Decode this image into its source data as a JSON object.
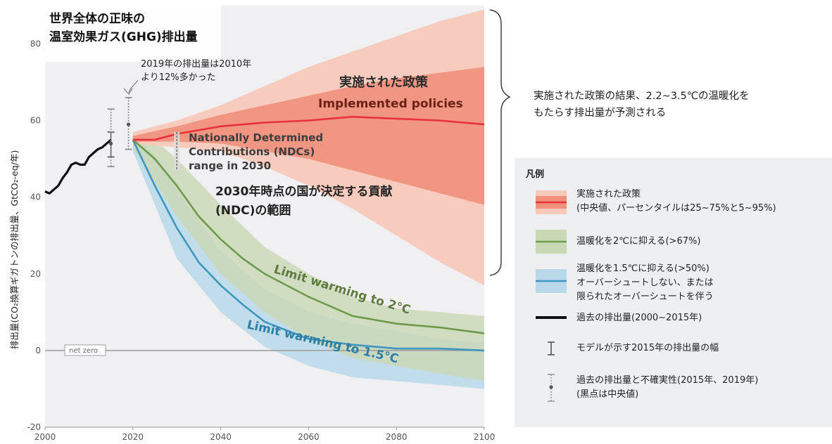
{
  "title": {
    "line1": "世界全体の正味の",
    "line2": "温室効果ガス(GHG)排出量"
  },
  "y_axis_label": "排出量(CO₂換算ギガトンの排出量、GtCO₂-eq/年)",
  "annotations": {
    "note_2019_line1": "2019年の排出量は2010年",
    "note_2019_line2": "より12%多かった",
    "implemented_jp": "実施された政策",
    "implemented_en": "Implemented policies",
    "ndc_en_line1": "Nationally Determined",
    "ndc_en_line2": "Contributions (NDCs)",
    "ndc_en_line3": "range in 2030",
    "ndc_jp_line1": "2030年時点の国が決定する貢献",
    "ndc_jp_line2": "(NDC)の範囲",
    "net_zero": "net zero",
    "limit_2c": "Limit warming to 2°C",
    "limit_15c": "Limit warming to 1.5°C",
    "brace_line1": "実施された政策の結果、2.2~3.5℃の温暖化を",
    "brace_line2": "もたらす排出量が予測される"
  },
  "legend": {
    "title": "凡例",
    "items": [
      {
        "line1": "実施された政策",
        "line2": "(中央値、パーセンタイルは25~75%と5~95%)"
      },
      {
        "line1": "温暖化を2℃に抑える(>67%)"
      },
      {
        "line1": "温暖化を1.5℃に抑える(>50%)",
        "line2": "オーバーシュートしない、または",
        "line3": "限られたオーバーシュートを伴う"
      },
      {
        "line1": "過去の排出量(2000~2015年)"
      },
      {
        "line1": "モデルが示す2015年の排出量の幅"
      },
      {
        "line1": "過去の排出量と不確実性(2015年、2019年)",
        "line2": "(黒点は中央値)"
      }
    ]
  },
  "colors": {
    "implemented": "#e8323c",
    "implemented_outer": "#f7c9bb",
    "implemented_inner": "#f0907b",
    "warming_2c": "#6f9a4c",
    "warming_2c_band": "#c9d8b4",
    "warming_15c": "#3f96bf",
    "warming_15c_band": "#b9d9ea",
    "historical": "#111111",
    "net_zero": "#a0a0a0"
  },
  "chart_data": {
    "type": "area",
    "xlim": [
      2000,
      2100
    ],
    "ylim": [
      -20,
      90
    ],
    "xticks": [
      2000,
      2020,
      2040,
      2060,
      2080,
      2100
    ],
    "yticks": [
      -20,
      0,
      20,
      40,
      60,
      80
    ],
    "grid": false,
    "legend_position": "right",
    "series": [
      {
        "name": "過去の排出量(2000~2015年)",
        "kind": "line",
        "x": [
          2000,
          2001,
          2002,
          2003,
          2004,
          2005,
          2006,
          2007,
          2008,
          2009,
          2010,
          2011,
          2012,
          2013,
          2014,
          2015
        ],
        "y": [
          41.5,
          41,
          42,
          43,
          45,
          46.5,
          48.5,
          49,
          48.5,
          48.5,
          50.5,
          51.5,
          52.5,
          53,
          54,
          55
        ]
      },
      {
        "name": "実施された政策",
        "kind": "line",
        "x": [
          2020,
          2025,
          2030,
          2040,
          2050,
          2060,
          2070,
          2080,
          2090,
          2100
        ],
        "y": [
          55,
          55,
          56.5,
          58.5,
          59.5,
          60,
          61,
          60.5,
          60,
          59
        ]
      },
      {
        "kind": "band",
        "percentile": "5-95",
        "x": [
          2020,
          2030,
          2040,
          2050,
          2060,
          2070,
          2080,
          2090,
          2100
        ],
        "upper": [
          57,
          60,
          64,
          69,
          74,
          78,
          82,
          86,
          89
        ],
        "lower": [
          54,
          53,
          52,
          48,
          43,
          37,
          30,
          23,
          17
        ]
      },
      {
        "kind": "band",
        "percentile": "25-75",
        "x": [
          2020,
          2030,
          2040,
          2050,
          2060,
          2070,
          2080,
          2090,
          2100
        ],
        "upper": [
          56,
          58.5,
          61.5,
          64,
          66.5,
          69,
          71,
          72.5,
          74
        ],
        "lower": [
          54.5,
          54.5,
          54,
          52,
          50,
          47,
          44,
          41,
          38
        ]
      },
      {
        "name": "温暖化を2℃に抑える(>67%)",
        "kind": "line",
        "x": [
          2020,
          2025,
          2030,
          2035,
          2040,
          2045,
          2050,
          2060,
          2070,
          2080,
          2090,
          2100
        ],
        "y": [
          55,
          50,
          43,
          35,
          29,
          24,
          20,
          14,
          9,
          7,
          6,
          4.5
        ]
      },
      {
        "kind": "band",
        "x": [
          2020,
          2025,
          2030,
          2040,
          2050,
          2060,
          2070,
          2080,
          2090,
          2100
        ],
        "upper": [
          57,
          55,
          50,
          38,
          27,
          20,
          14,
          11,
          10,
          9
        ],
        "lower": [
          53,
          44,
          35,
          20,
          10,
          3,
          -2,
          -4,
          -6,
          -8
        ]
      },
      {
        "name": "温暖化を1.5℃に抑える(>50%)",
        "kind": "line",
        "x": [
          2020,
          2025,
          2030,
          2035,
          2040,
          2045,
          2050,
          2060,
          2070,
          2080,
          2090,
          2100
        ],
        "y": [
          55,
          43,
          32,
          23,
          17,
          12,
          7.5,
          3,
          1.5,
          0.5,
          0.5,
          0
        ]
      },
      {
        "kind": "band",
        "x": [
          2020,
          2025,
          2030,
          2040,
          2050,
          2060,
          2070,
          2080,
          2090,
          2100
        ],
        "upper": [
          56,
          51,
          42,
          26,
          16,
          10,
          7,
          5,
          3,
          2
        ],
        "lower": [
          52,
          38,
          24,
          10,
          1,
          -4,
          -7,
          -8,
          -9,
          -10
        ]
      },
      {
        "name": "モデルが示す2015年の排出量の幅",
        "kind": "range",
        "x": 2015,
        "low": 50.5,
        "high": 57
      },
      {
        "name": "過去の排出量と不確実性(2015年、2019年)",
        "kind": "uncertainty",
        "points": [
          {
            "x": 2015,
            "low": 48,
            "median": 54,
            "high": 63
          },
          {
            "x": 2019,
            "low": 52.5,
            "median": 59,
            "high": 66
          }
        ]
      },
      {
        "name": "NDC range in 2030",
        "kind": "range",
        "x": 2030,
        "low": 47,
        "high": 57
      }
    ]
  }
}
